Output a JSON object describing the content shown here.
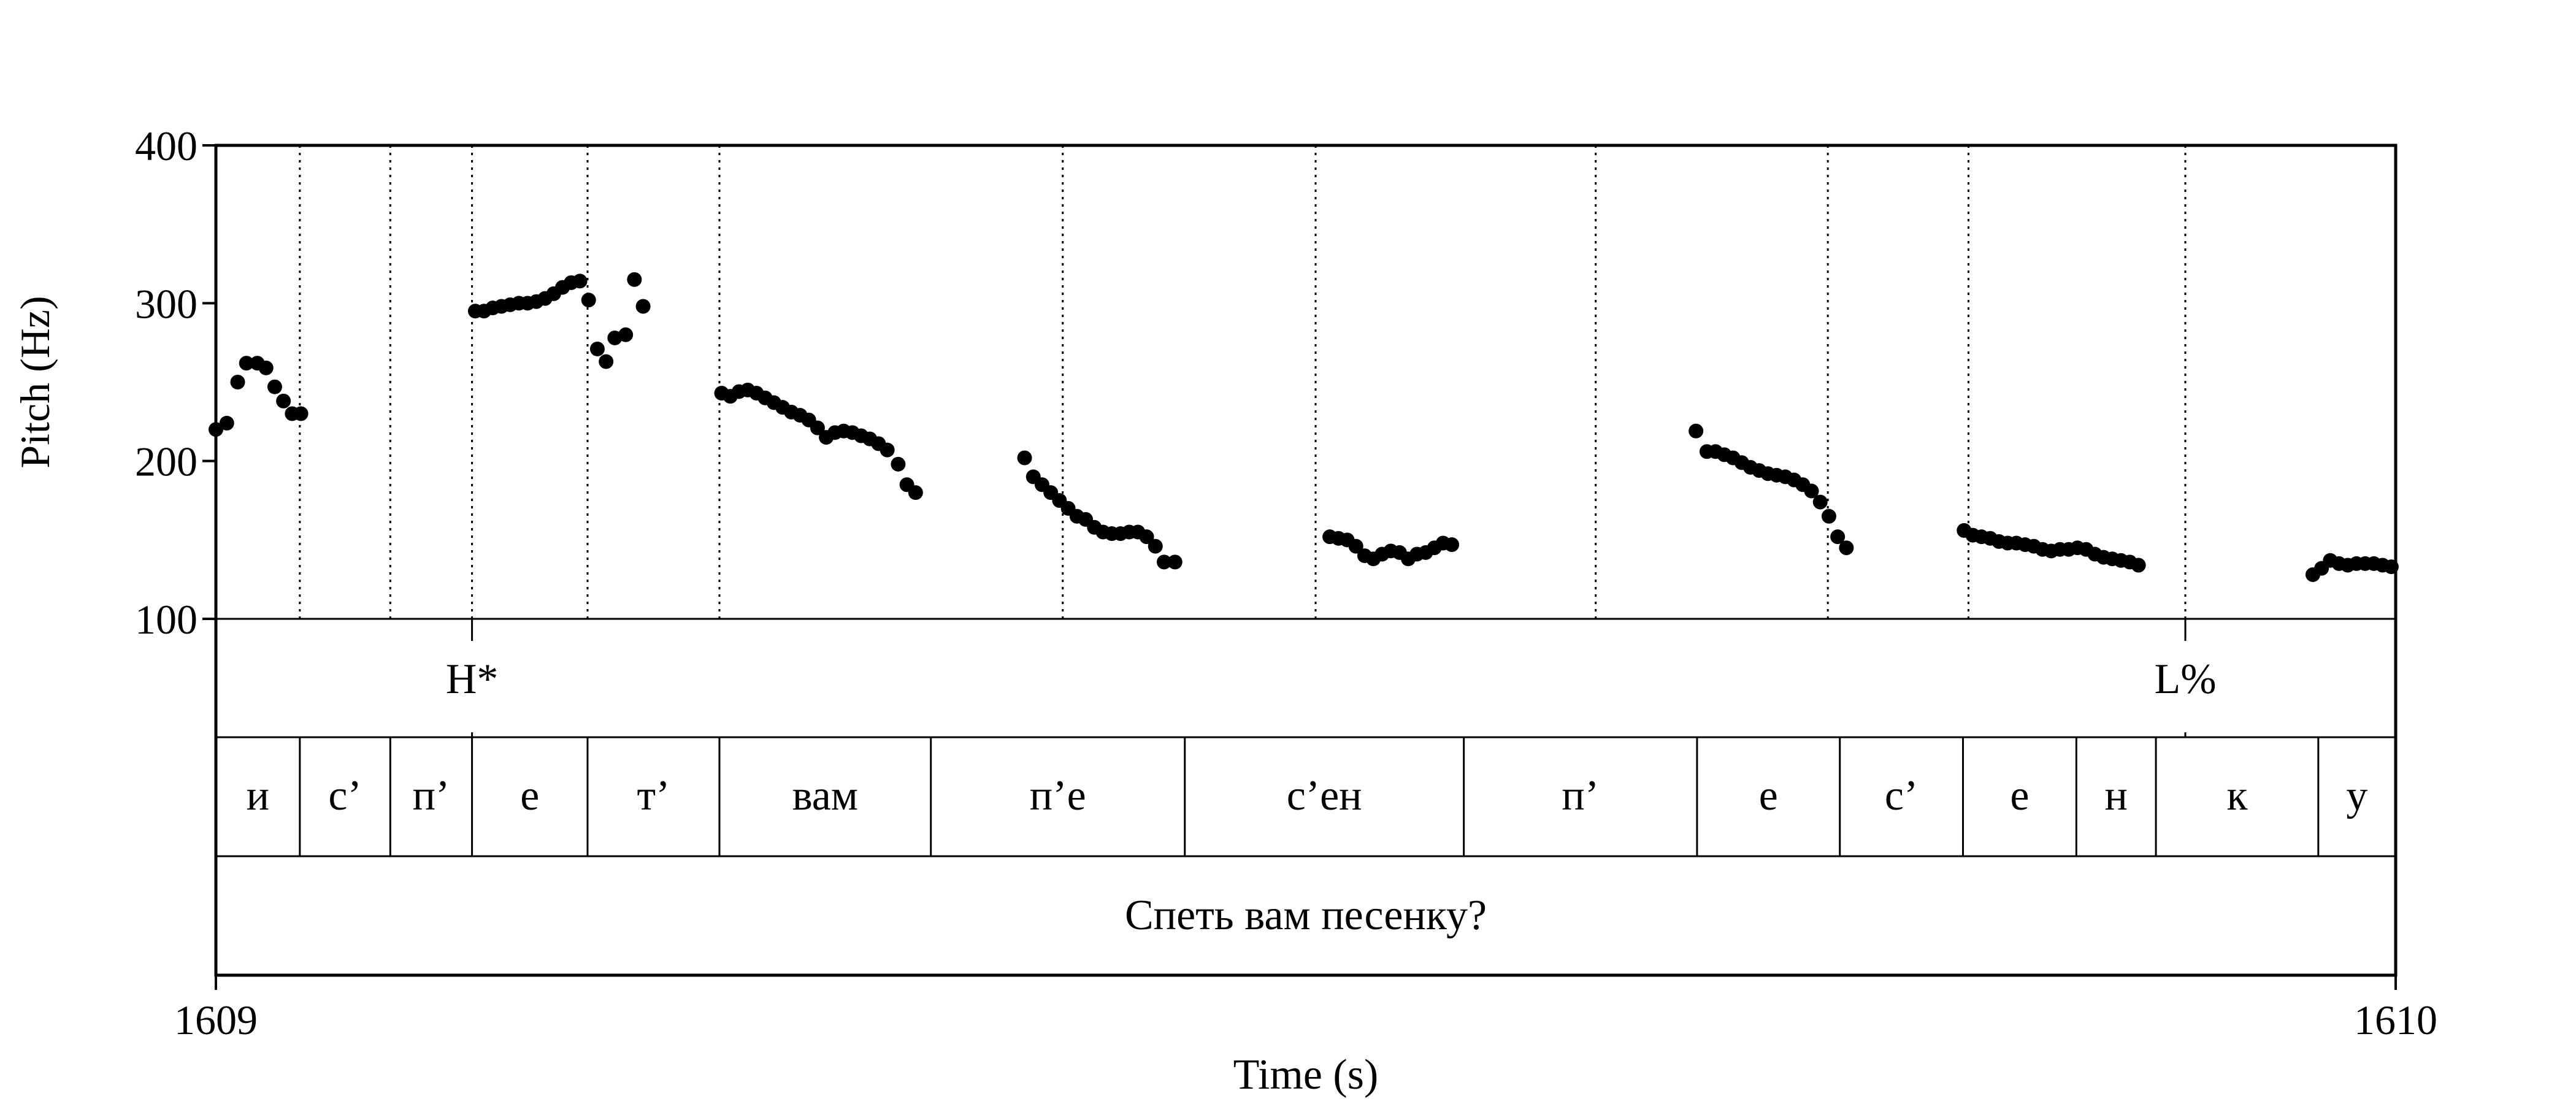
{
  "chart_data": {
    "type": "scatter",
    "title": "",
    "xlabel": "Time (s)",
    "ylabel": "Pitch (Hz)",
    "xlim": [
      1609,
      1610
    ],
    "ylim": [
      100,
      400
    ],
    "x_tick_labels": [
      "1609",
      "1610"
    ],
    "y_ticks": [
      100,
      200,
      300,
      400
    ],
    "y_tick_labels": [
      "100",
      "200",
      "300",
      "400"
    ],
    "grid": false,
    "marker_color": "#000000",
    "boundaries": [
      1609.0385,
      1609.08,
      1609.1175,
      1609.1705,
      1609.231,
      1609.3885,
      1609.5045,
      1609.633,
      1609.7395,
      1609.804,
      1609.9035
    ],
    "tones": [
      {
        "label": "H*",
        "time": 1609.1175
      },
      {
        "label": "L%",
        "time": 1609.9035
      }
    ],
    "segments": [
      {
        "label": "и",
        "start": 1609.0,
        "end": 1609.0385
      },
      {
        "label": "с’",
        "start": 1609.0385,
        "end": 1609.08
      },
      {
        "label": "п’",
        "start": 1609.08,
        "end": 1609.1175
      },
      {
        "label": "е",
        "start": 1609.1175,
        "end": 1609.1705
      },
      {
        "label": "т’",
        "start": 1609.1705,
        "end": 1609.231
      },
      {
        "label": "вам",
        "start": 1609.231,
        "end": 1609.328
      },
      {
        "label": "п’е",
        "start": 1609.328,
        "end": 1609.4445
      },
      {
        "label": "с’ен",
        "start": 1609.4445,
        "end": 1609.5725
      },
      {
        "label": "п’",
        "start": 1609.5725,
        "end": 1609.6795
      },
      {
        "label": "е",
        "start": 1609.6795,
        "end": 1609.745
      },
      {
        "label": "с’",
        "start": 1609.745,
        "end": 1609.8015
      },
      {
        "label": "е",
        "start": 1609.8015,
        "end": 1609.8535
      },
      {
        "label": "н",
        "start": 1609.8535,
        "end": 1609.89
      },
      {
        "label": "к",
        "start": 1609.89,
        "end": 1609.9645
      },
      {
        "label": "у",
        "start": 1609.9645,
        "end": 1610.0
      }
    ],
    "sentence": {
      "label": "Спеть вам песенку?",
      "start": 1609.0,
      "end": 1610.0
    },
    "series": [
      {
        "points": [
          [
            1609.0,
            220
          ],
          [
            1609.005,
            224
          ],
          [
            1609.01,
            250
          ],
          [
            1609.014,
            262
          ],
          [
            1609.019,
            262
          ],
          [
            1609.023,
            259
          ],
          [
            1609.027,
            247
          ],
          [
            1609.031,
            238
          ],
          [
            1609.035,
            230
          ],
          [
            1609.039,
            230
          ],
          [
            1609.119,
            295
          ],
          [
            1609.123,
            295
          ],
          [
            1609.127,
            297
          ],
          [
            1609.131,
            298
          ],
          [
            1609.135,
            299
          ],
          [
            1609.139,
            300
          ],
          [
            1609.143,
            300
          ],
          [
            1609.147,
            301
          ],
          [
            1609.151,
            303
          ],
          [
            1609.155,
            306
          ],
          [
            1609.159,
            310
          ],
          [
            1609.163,
            313
          ],
          [
            1609.167,
            314
          ],
          [
            1609.171,
            302
          ],
          [
            1609.175,
            271
          ],
          [
            1609.179,
            263
          ],
          [
            1609.183,
            278
          ],
          [
            1609.188,
            280
          ],
          [
            1609.192,
            315
          ],
          [
            1609.196,
            298
          ],
          [
            1609.232,
            243
          ],
          [
            1609.236,
            241
          ],
          [
            1609.24,
            244
          ],
          [
            1609.244,
            245
          ],
          [
            1609.248,
            243
          ],
          [
            1609.252,
            240
          ],
          [
            1609.256,
            237
          ],
          [
            1609.26,
            234
          ],
          [
            1609.264,
            231
          ],
          [
            1609.268,
            229
          ],
          [
            1609.272,
            226
          ],
          [
            1609.276,
            221
          ],
          [
            1609.28,
            215
          ],
          [
            1609.284,
            218
          ],
          [
            1609.288,
            219
          ],
          [
            1609.292,
            218
          ],
          [
            1609.296,
            216
          ],
          [
            1609.3,
            214
          ],
          [
            1609.304,
            211
          ],
          [
            1609.308,
            207
          ],
          [
            1609.313,
            198
          ],
          [
            1609.317,
            185
          ],
          [
            1609.321,
            180
          ],
          [
            1609.371,
            202
          ],
          [
            1609.375,
            190
          ],
          [
            1609.379,
            185
          ],
          [
            1609.383,
            180
          ],
          [
            1609.387,
            175
          ],
          [
            1609.391,
            170
          ],
          [
            1609.395,
            165
          ],
          [
            1609.399,
            163
          ],
          [
            1609.403,
            158
          ],
          [
            1609.407,
            155
          ],
          [
            1609.411,
            154
          ],
          [
            1609.415,
            154
          ],
          [
            1609.419,
            155
          ],
          [
            1609.423,
            155
          ],
          [
            1609.427,
            152
          ],
          [
            1609.431,
            146
          ],
          [
            1609.435,
            136
          ],
          [
            1609.44,
            136
          ],
          [
            1609.511,
            152
          ],
          [
            1609.515,
            151
          ],
          [
            1609.519,
            150
          ],
          [
            1609.523,
            146
          ],
          [
            1609.527,
            140
          ],
          [
            1609.531,
            138
          ],
          [
            1609.535,
            141
          ],
          [
            1609.539,
            143
          ],
          [
            1609.543,
            142
          ],
          [
            1609.547,
            138
          ],
          [
            1609.551,
            141
          ],
          [
            1609.555,
            142
          ],
          [
            1609.559,
            145
          ],
          [
            1609.563,
            148
          ],
          [
            1609.567,
            147
          ],
          [
            1609.679,
            219
          ],
          [
            1609.684,
            206
          ],
          [
            1609.688,
            206
          ],
          [
            1609.692,
            204
          ],
          [
            1609.696,
            202
          ],
          [
            1609.7,
            199
          ],
          [
            1609.704,
            196
          ],
          [
            1609.708,
            194
          ],
          [
            1609.712,
            192
          ],
          [
            1609.716,
            191
          ],
          [
            1609.72,
            190
          ],
          [
            1609.724,
            188
          ],
          [
            1609.728,
            185
          ],
          [
            1609.732,
            181
          ],
          [
            1609.736,
            174
          ],
          [
            1609.74,
            165
          ],
          [
            1609.744,
            152
          ],
          [
            1609.748,
            145
          ],
          [
            1609.802,
            156
          ],
          [
            1609.806,
            153
          ],
          [
            1609.81,
            152
          ],
          [
            1609.814,
            151
          ],
          [
            1609.818,
            149
          ],
          [
            1609.822,
            148
          ],
          [
            1609.826,
            148
          ],
          [
            1609.83,
            147
          ],
          [
            1609.834,
            146
          ],
          [
            1609.838,
            144
          ],
          [
            1609.842,
            143
          ],
          [
            1609.846,
            144
          ],
          [
            1609.85,
            144
          ],
          [
            1609.854,
            145
          ],
          [
            1609.858,
            144
          ],
          [
            1609.862,
            141
          ],
          [
            1609.866,
            139
          ],
          [
            1609.87,
            138
          ],
          [
            1609.874,
            137
          ],
          [
            1609.878,
            136
          ],
          [
            1609.882,
            134
          ],
          [
            1609.962,
            128
          ],
          [
            1609.966,
            132
          ],
          [
            1609.97,
            137
          ],
          [
            1609.974,
            135
          ],
          [
            1609.978,
            134
          ],
          [
            1609.982,
            135
          ],
          [
            1609.986,
            135
          ],
          [
            1609.99,
            135
          ],
          [
            1609.994,
            134
          ],
          [
            1609.998,
            133
          ]
        ]
      }
    ]
  }
}
